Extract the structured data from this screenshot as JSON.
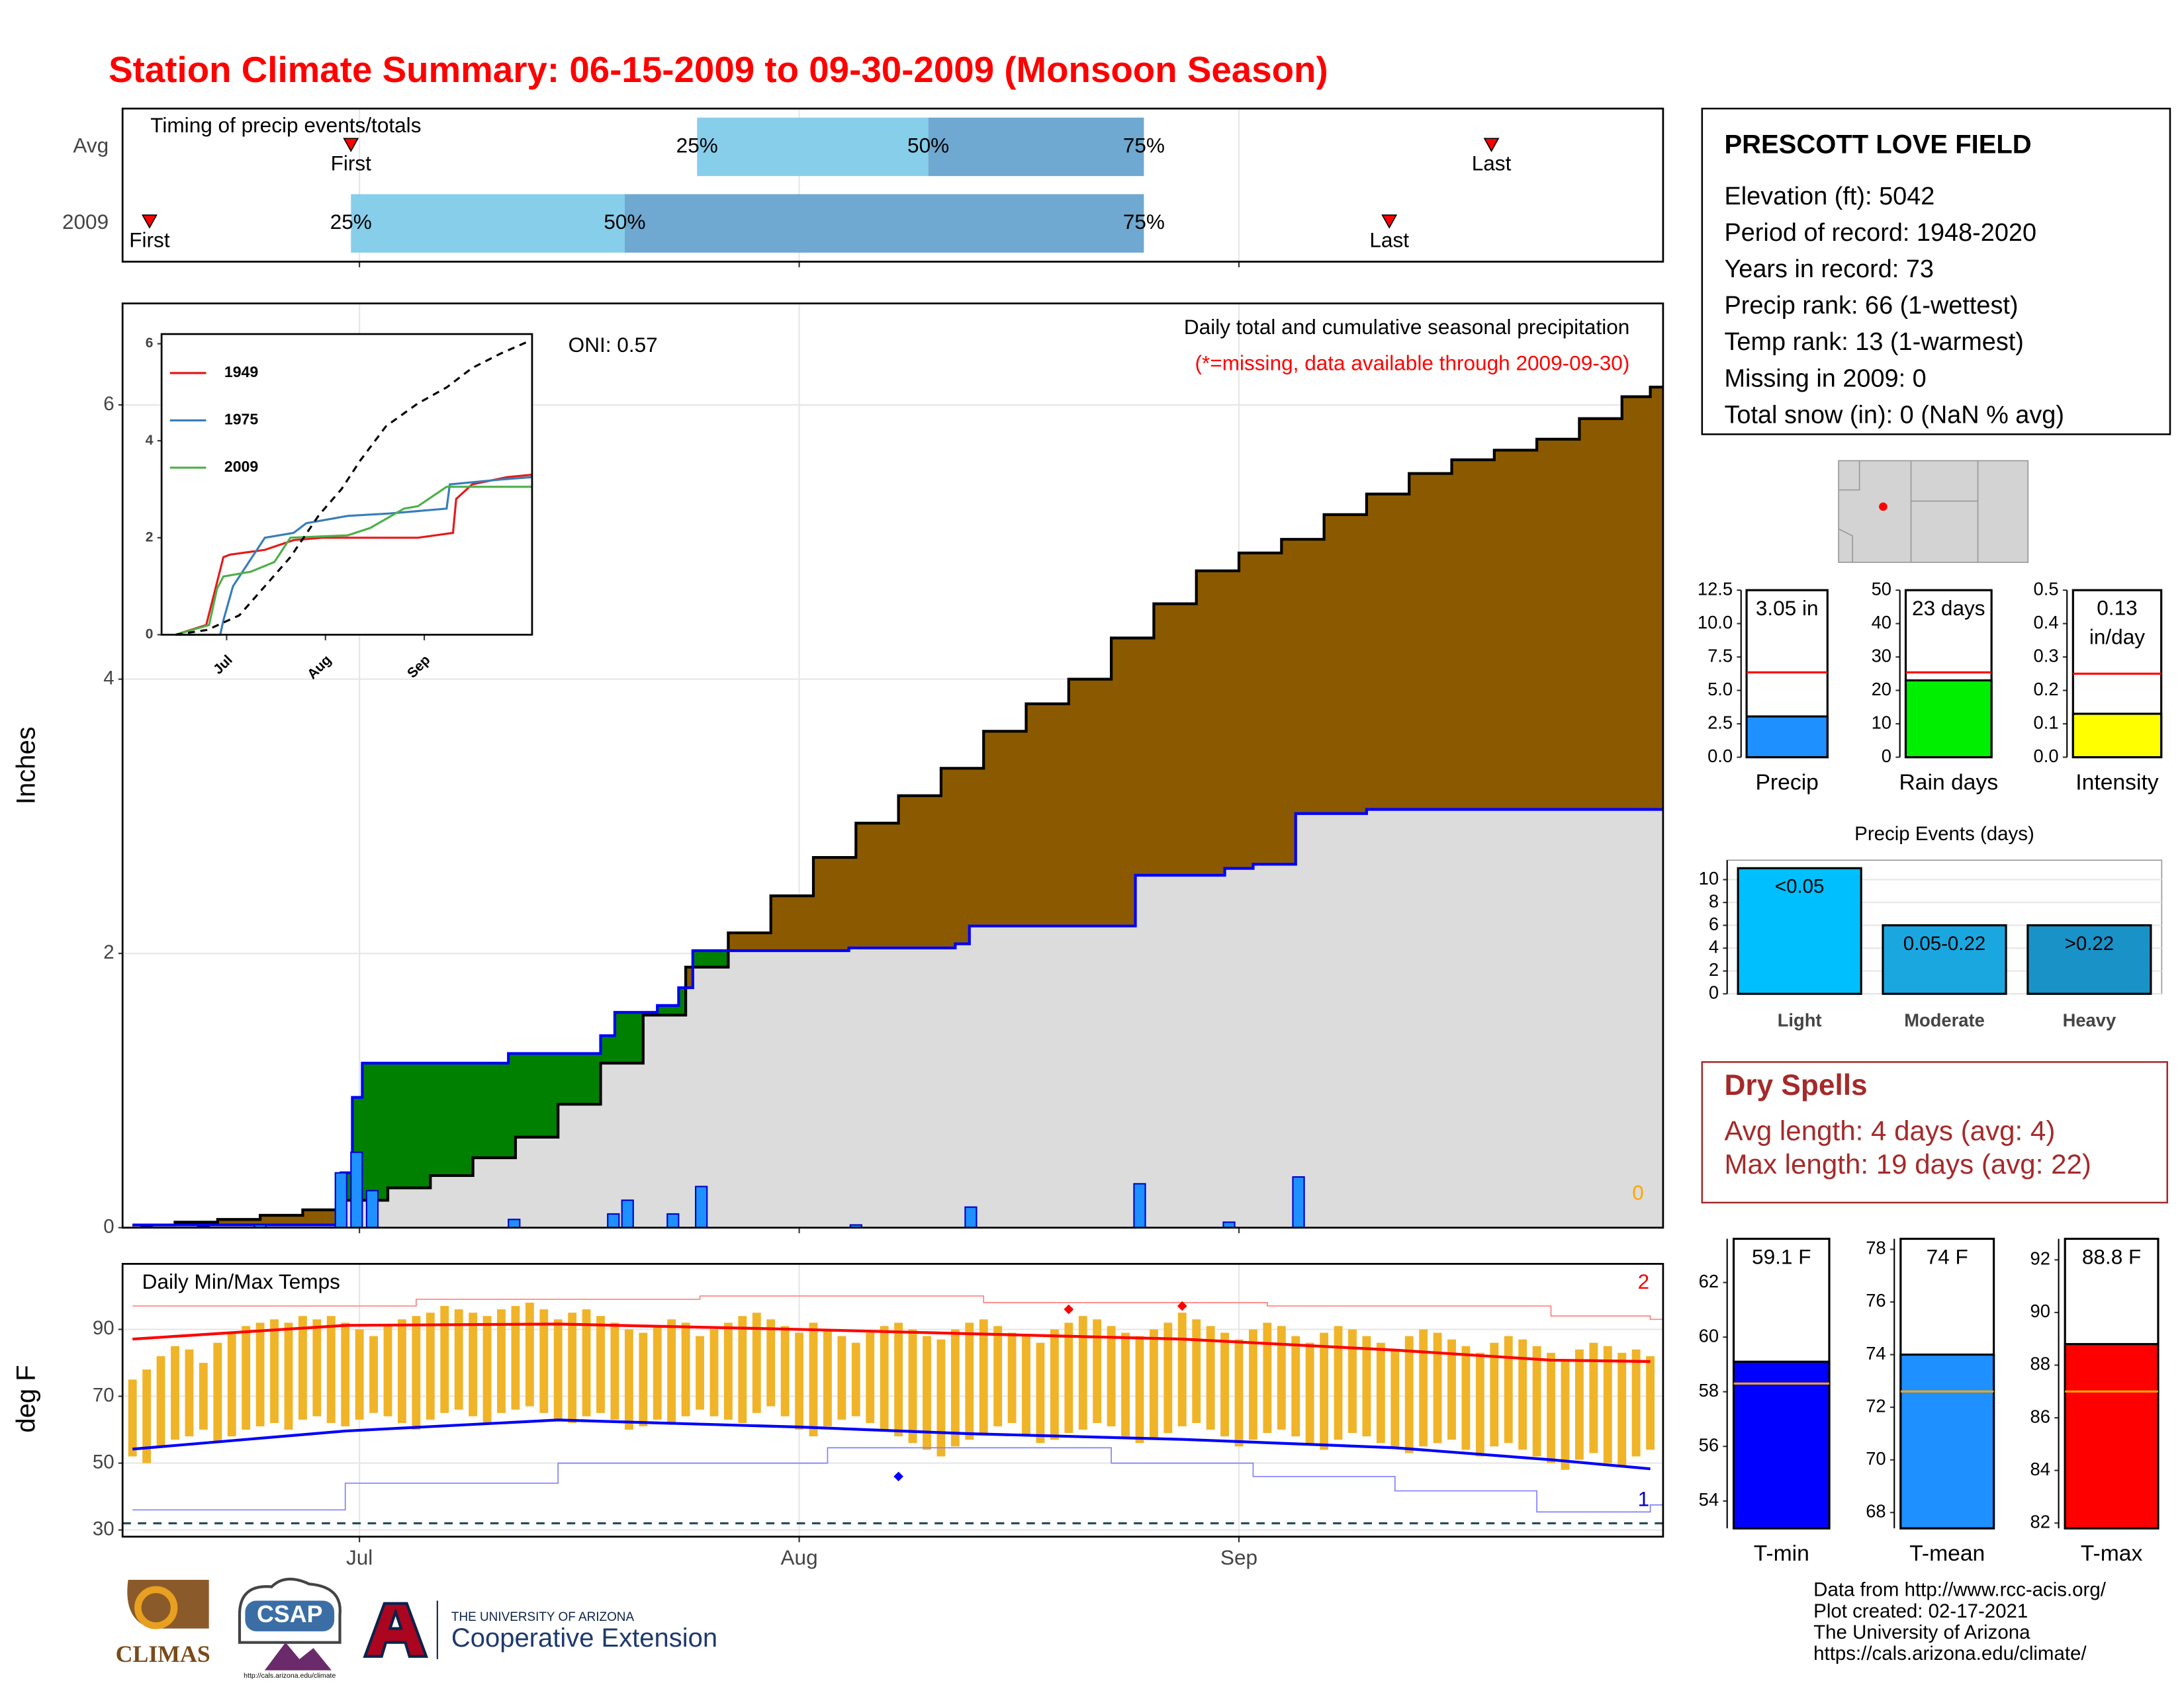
{
  "header": {
    "title": "Station Climate Summary: 06-15-2009 to 09-30-2009 (Monsoon Season)"
  },
  "station": {
    "name": "PRESCOTT LOVE FIELD",
    "lines": [
      "Elevation (ft): 5042",
      "Period of record: 1948-2020",
      "Years in record: 73",
      "Precip rank: 66 (1-wettest)",
      "Temp rank: 13 (1-warmest)",
      "Missing in 2009: 0",
      "Total snow (in): 0 (NaN % avg)"
    ]
  },
  "dry_spells": {
    "title": "Dry Spells",
    "lines": [
      "Avg length: 4 days (avg: 4)",
      "Max length: 19 days (avg: 22)"
    ]
  },
  "credits": [
    "Data from http://www.rcc-acis.org/",
    "Plot created: 02-17-2021",
    "The University of Arizona",
    "https://cals.arizona.edu/climate/"
  ],
  "logos": {
    "climas": "CLIMAS",
    "csap": "CSAP",
    "csap_url": "http://cals.arizona.edu/climate",
    "university": "THE UNIVERSITY OF ARIZONA",
    "extension": "Cooperative Extension"
  },
  "chart_data": [
    {
      "type": "timing",
      "title": "Timing of precip events/totals",
      "markers": [
        "First",
        "25%",
        "50%",
        "75%",
        "Last"
      ],
      "series": [
        {
          "name": "Avg",
          "values": [
            15.4,
            39.8,
            56.1,
            71.3,
            95.8
          ]
        },
        {
          "name": "2009",
          "values": [
            1.2,
            15.4,
            34.7,
            71.3,
            88.6
          ]
        }
      ],
      "colors": [
        "#87ceeb",
        "#6fa8d0"
      ],
      "marker_color": "#ff0000",
      "xlim": [
        -0.7,
        107.9
      ],
      "xticks": [
        16,
        47,
        78
      ],
      "grid": true
    },
    {
      "type": "step",
      "title": "Daily total and cumulative seasonal precipitation",
      "subtitle": "(*=missing, data available through 2009-09-30)",
      "annotation": "ONI: 0.57",
      "missing_days": 0,
      "ylabel": "Inches",
      "xlim": [
        -0.7,
        107.9
      ],
      "ylim": [
        0,
        6.74
      ],
      "xticks": [
        16,
        47,
        78
      ],
      "yticks": [
        0,
        2,
        4,
        6
      ],
      "grid": true,
      "cumulative_average": {
        "color": "#000000",
        "fill": "#8b5a00",
        "x": [
          0,
          3,
          6,
          9,
          12,
          15,
          18,
          21,
          24,
          27,
          30,
          33,
          36,
          39,
          42,
          45,
          48,
          51,
          54,
          57,
          60,
          63,
          66,
          69,
          72,
          75,
          78,
          81,
          84,
          87,
          90,
          93,
          96,
          99,
          102,
          105,
          107
        ],
        "values": [
          0.02,
          0.04,
          0.06,
          0.09,
          0.13,
          0.2,
          0.29,
          0.38,
          0.51,
          0.66,
          0.9,
          1.2,
          1.55,
          1.9,
          2.15,
          2.42,
          2.7,
          2.95,
          3.15,
          3.35,
          3.62,
          3.82,
          4.0,
          4.3,
          4.55,
          4.79,
          4.92,
          5.02,
          5.2,
          5.35,
          5.5,
          5.6,
          5.67,
          5.75,
          5.9,
          6.06,
          6.13
        ]
      },
      "cumulative": {
        "color": "#0000ff",
        "fill": "#dcdcdc",
        "above_fill": "#008000",
        "x": [
          0,
          14.7,
          15.5,
          16.2,
          26.5,
          33,
          34,
          37,
          38.5,
          39.5,
          50.5,
          58,
          59,
          70.7,
          77,
          79,
          82,
          87
        ],
        "values": [
          0.02,
          0.4,
          0.95,
          1.2,
          1.27,
          1.4,
          1.57,
          1.62,
          1.75,
          2.02,
          2.04,
          2.07,
          2.2,
          2.57,
          2.62,
          2.65,
          3.02,
          3.05
        ]
      },
      "daily": {
        "color": "#1e90ff",
        "x": [
          1,
          5,
          9,
          14.7,
          15.8,
          16.9,
          26.9,
          33.9,
          34.9,
          38.1,
          40.1,
          51,
          59.1,
          71,
          77.3,
          82.2
        ],
        "values": [
          0.01,
          0.01,
          0.02,
          0.4,
          0.55,
          0.27,
          0.06,
          0.1,
          0.2,
          0.1,
          0.3,
          0.02,
          0.15,
          0.32,
          0.04,
          0.37
        ]
      }
    },
    {
      "type": "line",
      "xlim": [
        -4.4,
        111.8
      ],
      "ylim": [
        0,
        6.2
      ],
      "yticks": [
        0,
        2,
        4,
        6
      ],
      "xticks": [
        {
          "value": 16,
          "label": "Jul"
        },
        {
          "value": 47,
          "label": "Aug"
        },
        {
          "value": 78,
          "label": "Sep"
        }
      ],
      "series": [
        {
          "name": "1949",
          "color": "#e41a1c",
          "x": [
            0,
            9.6,
            15,
            17,
            28,
            37,
            46,
            76,
            87,
            88,
            93,
            104,
            111.8
          ],
          "values": [
            0,
            0.2,
            1.6,
            1.65,
            1.75,
            1.95,
            2.0,
            2.0,
            2.1,
            2.8,
            3.1,
            3.25,
            3.3
          ]
        },
        {
          "name": "1975",
          "color": "#377eb8",
          "x": [
            0,
            14,
            15,
            18,
            28,
            37,
            41,
            54,
            67,
            85,
            86,
            102,
            111.8
          ],
          "values": [
            0,
            0,
            0.3,
            1.0,
            2.0,
            2.1,
            2.3,
            2.45,
            2.5,
            2.6,
            3.1,
            3.2,
            3.25
          ]
        },
        {
          "name": "2009",
          "color": "#4daf4a",
          "x": [
            0,
            10.5,
            13,
            15,
            23.6,
            31,
            36,
            54,
            61,
            71.6,
            76,
            85,
            111.8
          ],
          "values": [
            0,
            0.2,
            0.95,
            1.2,
            1.3,
            1.5,
            2.0,
            2.05,
            2.2,
            2.6,
            2.65,
            3.05,
            3.05
          ]
        },
        {
          "color": "#000000",
          "dashed": true,
          "x": [
            0,
            10,
            20,
            28,
            36,
            45,
            52,
            58,
            66,
            76,
            85,
            93,
            102,
            111
          ],
          "values": [
            0,
            0.1,
            0.4,
            1.0,
            1.6,
            2.47,
            3.0,
            3.6,
            4.3,
            4.77,
            5.1,
            5.5,
            5.8,
            6.06
          ]
        }
      ]
    },
    {
      "type": "range",
      "title": "Daily Min/Max Temps",
      "ylabel": "deg F",
      "record_highs": 2,
      "record_lows": 1,
      "xlim": [
        -0.7,
        107.9
      ],
      "ylim": [
        28,
        109.6
      ],
      "yticks": [
        30,
        50,
        70,
        90
      ],
      "xticks": [
        {
          "value": 16,
          "label": "Jul"
        },
        {
          "value": 47,
          "label": "Aug"
        },
        {
          "value": 78,
          "label": "Sep"
        }
      ],
      "grid": true,
      "color": "#f0b429",
      "freezing": 32,
      "x": [
        0,
        1,
        2,
        3,
        4,
        5,
        6,
        7,
        8,
        9,
        10,
        11,
        12,
        13,
        14,
        15,
        16,
        17,
        18,
        19,
        20,
        21,
        22,
        23,
        24,
        25,
        26,
        27,
        28,
        29,
        30,
        31,
        32,
        33,
        34,
        35,
        36,
        37,
        38,
        39,
        40,
        41,
        42,
        43,
        44,
        45,
        46,
        47,
        48,
        49,
        50,
        51,
        52,
        53,
        54,
        55,
        56,
        57,
        58,
        59,
        60,
        61,
        62,
        63,
        64,
        65,
        66,
        67,
        68,
        69,
        70,
        71,
        72,
        73,
        74,
        75,
        76,
        77,
        78,
        79,
        80,
        81,
        82,
        83,
        84,
        85,
        86,
        87,
        88,
        89,
        90,
        91,
        92,
        93,
        94,
        95,
        96,
        97,
        98,
        99,
        100,
        101,
        102,
        103,
        104,
        105,
        106,
        107
      ],
      "max": [
        75,
        78,
        82,
        85,
        84,
        80,
        86,
        89,
        91,
        92,
        93,
        92,
        94,
        93,
        94,
        92,
        90,
        88,
        91,
        93,
        94,
        95,
        97,
        96,
        95,
        94,
        96,
        97,
        98,
        96,
        93,
        95,
        96,
        94,
        92,
        90,
        89,
        91,
        93,
        92,
        88,
        90,
        92,
        94,
        95,
        93,
        91,
        89,
        92,
        90,
        88,
        86,
        89,
        91,
        92,
        90,
        88,
        87,
        90,
        92,
        93,
        91,
        89,
        88,
        86,
        90,
        92,
        94,
        93,
        91,
        89,
        88,
        90,
        92,
        95,
        93,
        91,
        89,
        87,
        90,
        92,
        91,
        88,
        86,
        89,
        91,
        90,
        88,
        86,
        84,
        88,
        90,
        89,
        87,
        85,
        83,
        86,
        88,
        87,
        85,
        83,
        81,
        84,
        86,
        85,
        83,
        84,
        82
      ],
      "min": [
        52,
        50,
        55,
        57,
        58,
        60,
        56,
        58,
        60,
        61,
        62,
        60,
        63,
        64,
        62,
        61,
        63,
        65,
        64,
        62,
        60,
        63,
        65,
        66,
        64,
        62,
        65,
        66,
        67,
        65,
        63,
        62,
        64,
        65,
        63,
        60,
        61,
        63,
        62,
        64,
        66,
        64,
        63,
        62,
        65,
        67,
        64,
        60,
        58,
        61,
        63,
        64,
        62,
        60,
        58,
        56,
        54,
        52,
        55,
        57,
        59,
        61,
        62,
        58,
        56,
        57,
        59,
        60,
        62,
        61,
        58,
        56,
        57,
        59,
        61,
        62,
        60,
        58,
        55,
        57,
        59,
        60,
        58,
        56,
        54,
        57,
        59,
        58,
        56,
        55,
        53,
        55,
        56,
        57,
        54,
        52,
        55,
        56,
        54,
        52,
        50,
        48,
        51,
        53,
        50,
        49,
        52,
        54
      ],
      "average_max": {
        "color": "#ff0000",
        "x": [
          0,
          15,
          30,
          47,
          59,
          74,
          89,
          100,
          107
        ],
        "values": [
          87.1,
          91.2,
          91.6,
          90,
          88.7,
          87.1,
          83.8,
          80.8,
          80.4
        ]
      },
      "average_min": {
        "color": "#0000ff",
        "x": [
          0,
          15,
          30,
          47,
          59,
          74,
          89,
          100,
          107
        ],
        "values": [
          54.2,
          59.6,
          62.9,
          60.8,
          58.8,
          57.1,
          54.6,
          51,
          48.3
        ]
      },
      "record_max": {
        "color": "#ff8080",
        "x": [
          0,
          20,
          40,
          60,
          80,
          100,
          107
        ],
        "values": [
          97,
          99,
          100,
          98,
          97,
          94,
          93
        ]
      },
      "record_min": {
        "color": "#8080ff",
        "x": [
          0,
          15,
          30,
          49,
          69,
          79,
          89,
          99,
          107
        ],
        "values": [
          36,
          44,
          50,
          54.6,
          50,
          46,
          41.7,
          35.4,
          37.5
        ]
      },
      "record_points": [
        {
          "x": 66,
          "value": 96,
          "color": "#ff0000"
        },
        {
          "x": 74,
          "value": 97,
          "color": "#ff0000"
        },
        {
          "x": 54,
          "value": 46,
          "color": "#0000ff"
        }
      ]
    },
    {
      "type": "bar",
      "categories": [
        "Precip"
      ],
      "values": [
        3.05
      ],
      "value_labels": [
        "3.05 in"
      ],
      "average": 6.35,
      "average_color": "#ff0000",
      "color": "#1e90ff",
      "ylim": [
        0,
        12.5
      ],
      "yticks": [
        {
          "value": 0,
          "label": "0.0"
        },
        2.5,
        {
          "value": 5,
          "label": "5.0"
        },
        7.5,
        {
          "value": 10,
          "label": "10.0"
        },
        12.5
      ]
    },
    {
      "type": "bar",
      "categories": [
        "Rain days"
      ],
      "values": [
        23
      ],
      "value_labels": [
        "23 days"
      ],
      "average": 25.4,
      "average_color": "#ff0000",
      "color": "#00ee00",
      "ylim": [
        0,
        50
      ],
      "yticks": [
        0,
        10,
        20,
        30,
        40,
        50
      ]
    },
    {
      "type": "bar",
      "categories": [
        "Intensity"
      ],
      "values": [
        0.13
      ],
      "value_labels": [
        "0.13\nin/day"
      ],
      "average": 0.25,
      "average_color": "#ff0000",
      "color": "#ffff00",
      "ylim": [
        0,
        0.5
      ],
      "yticks": [
        {
          "value": 0,
          "label": "0.0"
        },
        0.1,
        0.2,
        0.3,
        0.4,
        0.5
      ]
    },
    {
      "type": "bar",
      "title": "Precip Events (days)",
      "categories": [
        "Light",
        "Moderate",
        "Heavy"
      ],
      "values": [
        11,
        6,
        6
      ],
      "bar_labels": [
        "<0.05",
        "0.05-0.22",
        ">0.22"
      ],
      "colors": [
        "#00bfff",
        "#1aa7e0",
        "#1992c8"
      ],
      "ylim": [
        0,
        11.7
      ],
      "yticks": [
        0,
        2,
        4,
        6,
        8,
        10
      ],
      "grid": true
    },
    {
      "type": "bar",
      "categories": [
        "T-min"
      ],
      "values": [
        59.1
      ],
      "value_labels": [
        "59.1 F"
      ],
      "average": 58.3,
      "average_color": "#ffa500",
      "color": "#0000ff",
      "ylim": [
        53,
        63.6
      ],
      "yticks": [
        54,
        56,
        58,
        60,
        62
      ]
    },
    {
      "type": "bar",
      "categories": [
        "T-mean"
      ],
      "values": [
        74
      ],
      "value_labels": [
        "74 F"
      ],
      "average": 72.6,
      "average_color": "#ffa500",
      "color": "#1e90ff",
      "ylim": [
        67.4,
        78.4
      ],
      "yticks": [
        68,
        70,
        72,
        74,
        76,
        78
      ]
    },
    {
      "type": "bar",
      "categories": [
        "T-max"
      ],
      "values": [
        88.8
      ],
      "value_labels": [
        "88.8 F"
      ],
      "average": 87,
      "average_color": "#ffa500",
      "color": "#ff0000",
      "ylim": [
        81.8,
        92.8
      ],
      "yticks": [
        82,
        84,
        86,
        88,
        90,
        92
      ]
    }
  ]
}
